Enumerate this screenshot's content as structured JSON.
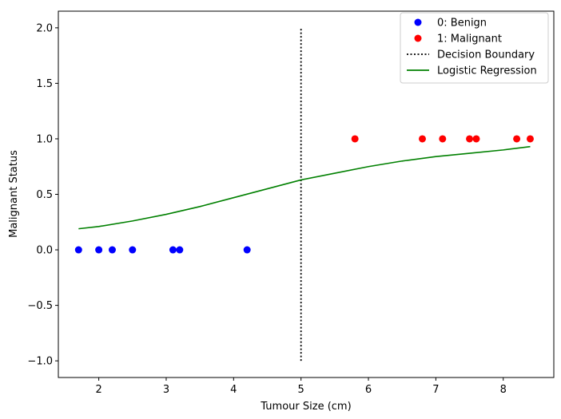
{
  "chart_data": {
    "type": "scatter",
    "title": "",
    "xlabel": "Tumour Size (cm)",
    "ylabel": "Malignant Status",
    "xlim": [
      1.4,
      8.75
    ],
    "ylim": [
      -1.15,
      2.15
    ],
    "xticks": [
      2,
      3,
      4,
      5,
      6,
      7,
      8
    ],
    "yticks": [
      -1.0,
      -0.5,
      0.0,
      0.5,
      1.0,
      1.5,
      2.0
    ],
    "ytick_labels": [
      "−1.0",
      "−0.5",
      "0.0",
      "0.5",
      "1.0",
      "1.5",
      "2.0"
    ],
    "grid": false,
    "legend_position": "top-right",
    "series": [
      {
        "name": "0: Benign",
        "kind": "scatter",
        "color": "#0000ff",
        "points": [
          [
            1.7,
            0
          ],
          [
            2.0,
            0
          ],
          [
            2.2,
            0
          ],
          [
            2.5,
            0
          ],
          [
            3.1,
            0
          ],
          [
            3.2,
            0
          ],
          [
            4.2,
            0
          ]
        ]
      },
      {
        "name": "1: Malignant",
        "kind": "scatter",
        "color": "#ff0000",
        "points": [
          [
            5.8,
            1
          ],
          [
            6.8,
            1
          ],
          [
            7.1,
            1
          ],
          [
            7.5,
            1
          ],
          [
            7.6,
            1
          ],
          [
            8.2,
            1
          ],
          [
            8.4,
            1
          ]
        ]
      },
      {
        "name": "Decision Boundary",
        "kind": "line",
        "style": "dotted",
        "color": "#000000",
        "points": [
          [
            5.0,
            -1.0
          ],
          [
            5.0,
            2.0
          ]
        ]
      },
      {
        "name": "Logistic Regression",
        "kind": "line",
        "style": "solid",
        "color": "#008000",
        "points": [
          [
            1.7,
            0.19
          ],
          [
            2.0,
            0.21
          ],
          [
            2.5,
            0.26
          ],
          [
            3.0,
            0.32
          ],
          [
            3.5,
            0.39
          ],
          [
            4.0,
            0.47
          ],
          [
            4.5,
            0.55
          ],
          [
            5.0,
            0.63
          ],
          [
            5.5,
            0.69
          ],
          [
            6.0,
            0.75
          ],
          [
            6.5,
            0.8
          ],
          [
            7.0,
            0.84
          ],
          [
            7.5,
            0.87
          ],
          [
            8.0,
            0.9
          ],
          [
            8.4,
            0.93
          ]
        ]
      }
    ]
  }
}
